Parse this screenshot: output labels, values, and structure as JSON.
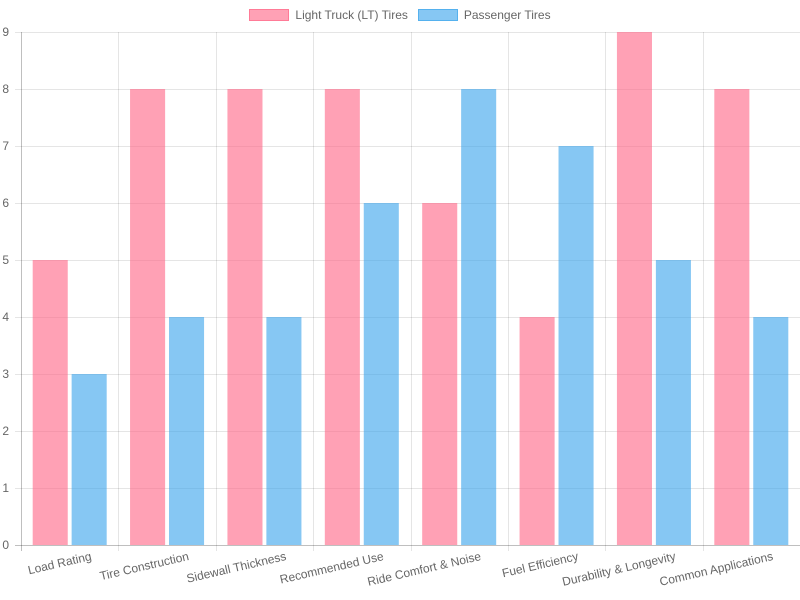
{
  "chart_data": {
    "type": "bar",
    "categories": [
      "Load Rating",
      "Tire Construction",
      "Sidewall Thickness",
      "Recommended Use",
      "Ride Comfort & Noise",
      "Fuel Efficiency",
      "Durability & Longevity",
      "Common Applications"
    ],
    "series": [
      {
        "name": "Light Truck (LT) Tires",
        "color": "#FF6384",
        "values": [
          5,
          8,
          8,
          8,
          6,
          4,
          9,
          8
        ]
      },
      {
        "name": "Passenger Tires",
        "color": "#36A2EB",
        "values": [
          3,
          4,
          4,
          6,
          8,
          7,
          5,
          4
        ]
      }
    ],
    "ylim": [
      0,
      9
    ],
    "yticks": [
      0,
      1,
      2,
      3,
      4,
      5,
      6,
      7,
      8,
      9
    ],
    "grid": true,
    "legend_position": "top-center",
    "title": "",
    "xlabel": "",
    "ylabel": ""
  }
}
